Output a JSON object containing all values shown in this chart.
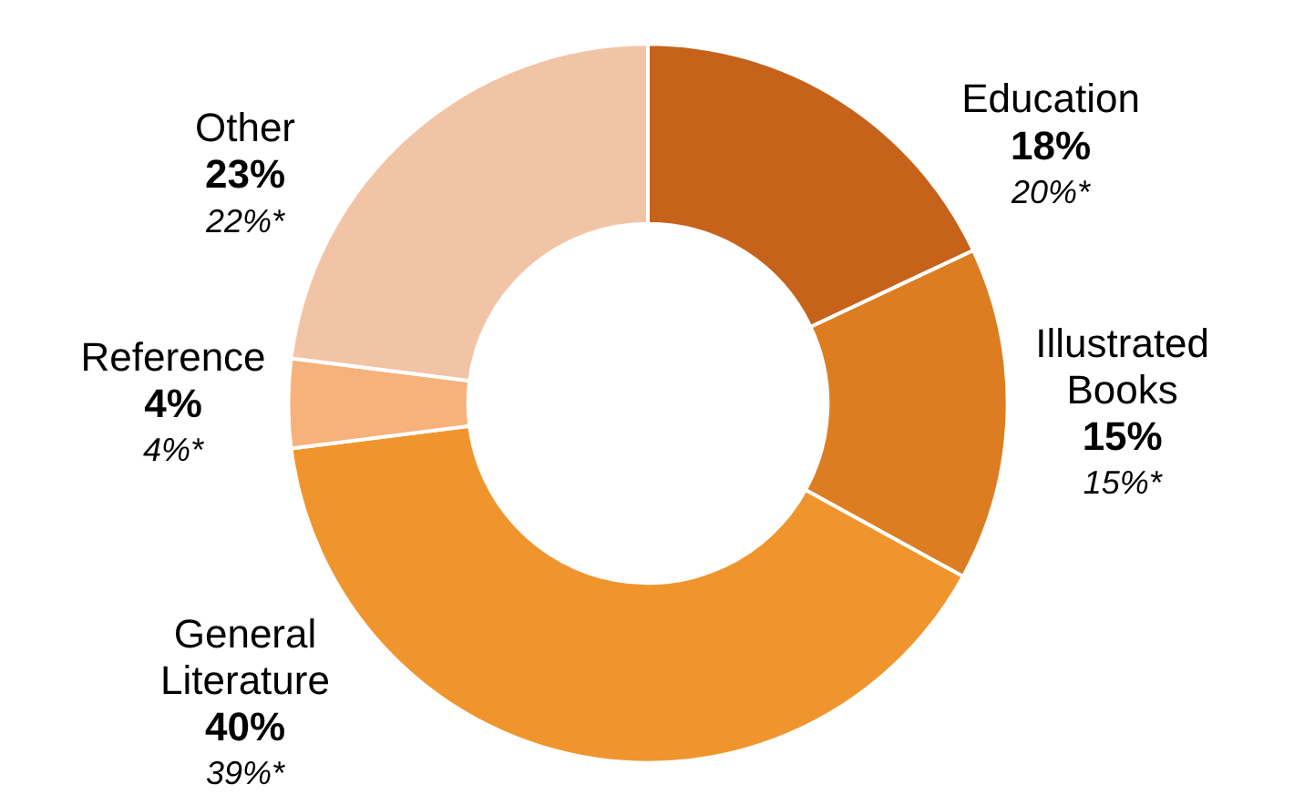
{
  "chart_data": {
    "type": "donut",
    "categories": [
      "Education",
      "Illustrated Books",
      "General Literature",
      "Reference",
      "Other"
    ],
    "values": [
      18,
      15,
      40,
      4,
      23
    ],
    "value_labels": [
      "18%",
      "15%",
      "40%",
      "4%",
      "23%"
    ],
    "colors": [
      "#c7621b",
      "#dd7d22",
      "#f0952e",
      "#f6b27a",
      "#f2c4a6"
    ],
    "annotations": [
      "20%*",
      "15%*",
      "39%*",
      "4%*",
      "22%*"
    ]
  }
}
